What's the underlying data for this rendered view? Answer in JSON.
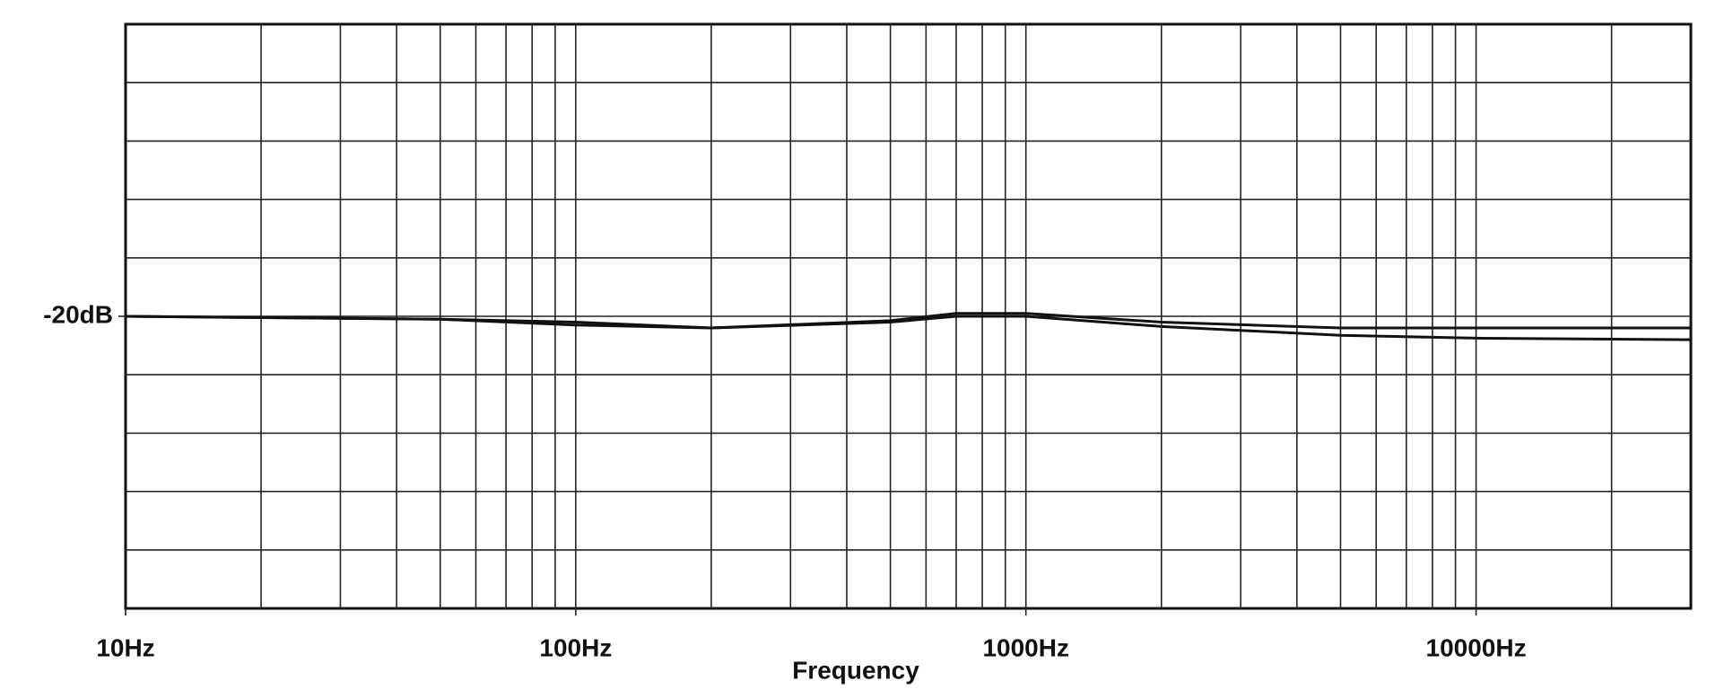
{
  "chart_data": {
    "type": "line",
    "x_label": "Frequency",
    "x": [
      10,
      50,
      100,
      200,
      500,
      700,
      1000,
      2000,
      5000,
      10000,
      30000
    ],
    "series": [
      {
        "color": "#111111",
        "values": [
          -20,
          -20.1,
          -20.2,
          -20.4,
          -20.15,
          -19.9,
          -19.9,
          -20.2,
          -20.4,
          -20.4,
          -20.4
        ]
      },
      {
        "color": "#111111",
        "values": [
          -20,
          -20.1,
          -20.3,
          -20.4,
          -20.2,
          -20.0,
          -20.0,
          -20.35,
          -20.65,
          -20.75,
          -20.8
        ]
      }
    ],
    "xlog": true,
    "xlim": [
      10,
      30000
    ],
    "xticks": [
      {
        "value": 10,
        "label": "10Hz"
      },
      {
        "value": 100,
        "label": "100Hz"
      },
      {
        "value": 1000,
        "label": "1000Hz"
      },
      {
        "value": 10000,
        "label": "10000Hz"
      }
    ],
    "xgrid": [
      20,
      30,
      40,
      50,
      60,
      70,
      80,
      90,
      100,
      200,
      300,
      400,
      500,
      600,
      700,
      800,
      900,
      1000,
      2000,
      3000,
      4000,
      5000,
      6000,
      7000,
      8000,
      9000,
      10000,
      20000
    ],
    "ylim": [
      -30,
      -10
    ],
    "yticks": [
      {
        "value": -20,
        "label": "-20dB"
      }
    ],
    "ygrid": [
      -28,
      -26,
      -24,
      -22,
      -20,
      -18,
      -16,
      -14,
      -12
    ]
  }
}
